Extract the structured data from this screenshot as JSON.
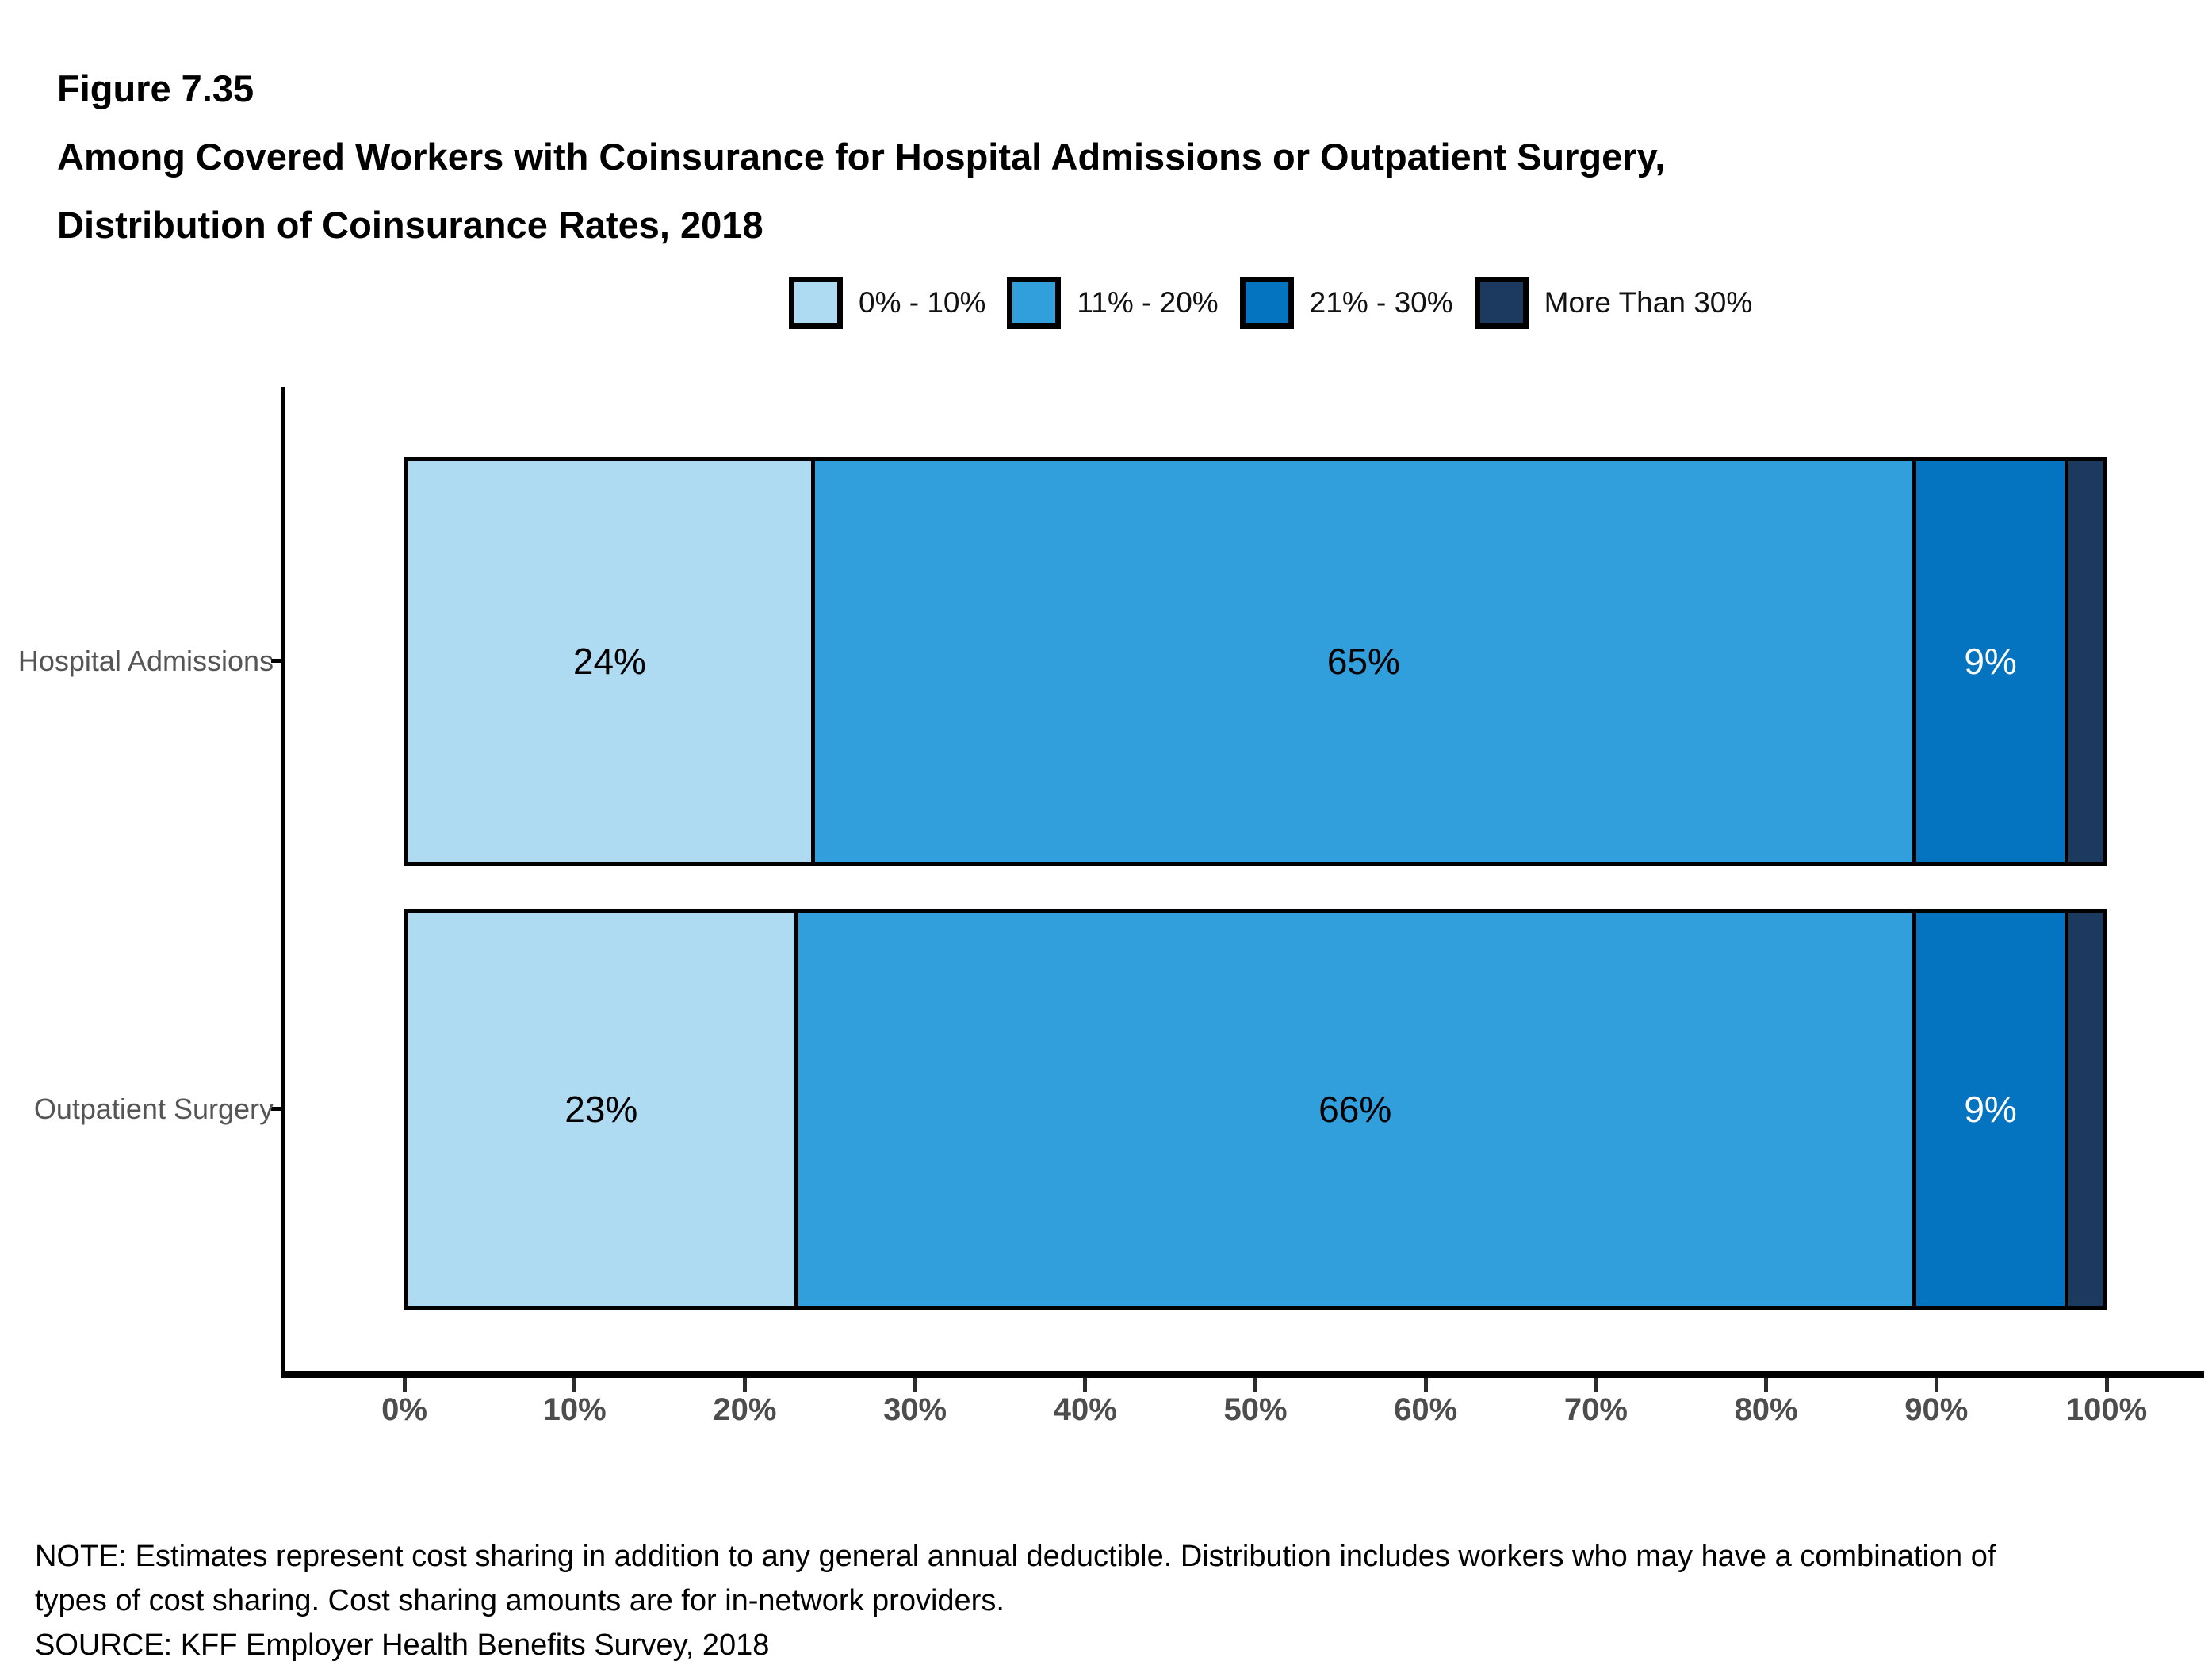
{
  "title": {
    "figure_number": "Figure 7.35",
    "line1": "Among Covered Workers with Coinsurance for Hospital Admissions or Outpatient Surgery,",
    "line2": "Distribution of Coinsurance Rates, 2018"
  },
  "legend": {
    "items": [
      {
        "label": "0% - 10%",
        "color": "#AFDBF2"
      },
      {
        "label": "11% - 20%",
        "color": "#329FDD"
      },
      {
        "label": "21% - 30%",
        "color": "#0473C0"
      },
      {
        "label": "More Than 30%",
        "color": "#1C3A5F"
      }
    ]
  },
  "chart_data": {
    "type": "bar",
    "orientation": "horizontal-stacked",
    "title": "Among Covered Workers with Coinsurance for Hospital Admissions or Outpatient Surgery, Distribution of Coinsurance Rates, 2018",
    "categories": [
      "Hospital Admissions",
      "Outpatient Surgery"
    ],
    "series": [
      {
        "name": "0% - 10%",
        "color": "#AFDBF2",
        "label_color": "#000000",
        "values": [
          24,
          23
        ]
      },
      {
        "name": "11% - 20%",
        "color": "#329FDD",
        "label_color": "#000000",
        "values": [
          65,
          66
        ]
      },
      {
        "name": "21% - 30%",
        "color": "#0473C0",
        "label_color": "#FFFFFF",
        "values": [
          9,
          9
        ]
      },
      {
        "name": "More Than 30%",
        "color": "#1C3A5F",
        "label_color": "#FFFFFF",
        "values": [
          2,
          2
        ]
      }
    ],
    "data_labels": {
      "format": "percent",
      "shown_min_value": 5
    },
    "xlabel": "",
    "ylabel": "",
    "xlim": [
      0,
      100
    ],
    "x_ticks": [
      "0%",
      "10%",
      "20%",
      "30%",
      "40%",
      "50%",
      "60%",
      "70%",
      "80%",
      "90%",
      "100%"
    ],
    "legend_position": "top",
    "grid": false
  },
  "notes": {
    "note_line1": "NOTE: Estimates represent cost sharing in addition to any general annual deductible. Distribution includes workers who may have a combination of",
    "note_line2": "types of cost sharing. Cost sharing amounts are for in-network providers.",
    "source": "SOURCE: KFF Employer Health Benefits Survey, 2018"
  }
}
